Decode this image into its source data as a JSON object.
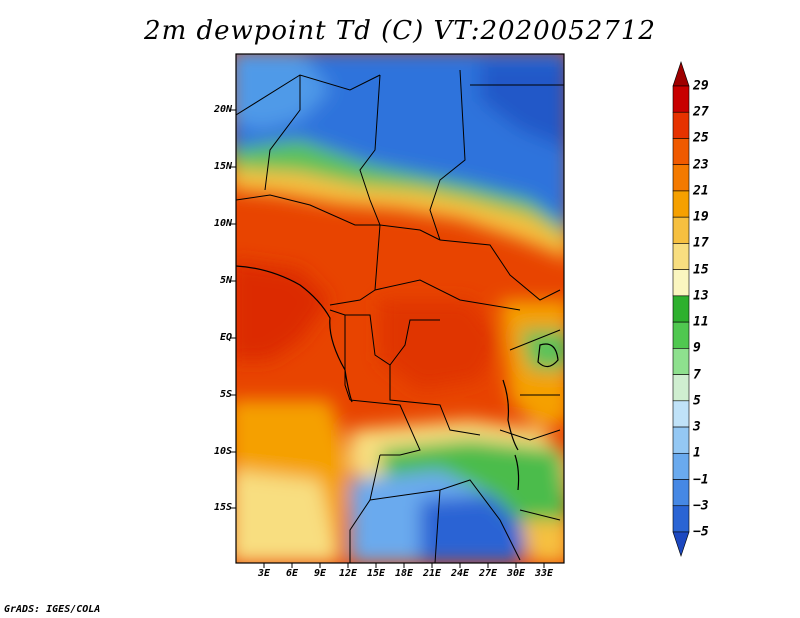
{
  "title": "2m dewpoint Td (C) VT:2020052712",
  "lat_labels": [
    "20N",
    "15N",
    "10N",
    "5N",
    "EQ",
    "5S",
    "10S",
    "15S"
  ],
  "lon_labels": [
    "3E",
    "6E",
    "9E",
    "12E",
    "15E",
    "18E",
    "21E",
    "24E",
    "27E",
    "30E",
    "33E"
  ],
  "colorbar": {
    "labels": [
      "29",
      "27",
      "25",
      "23",
      "21",
      "19",
      "17",
      "15",
      "13",
      "11",
      "9",
      "7",
      "5",
      "3",
      "1",
      "−1",
      "−3",
      "−5"
    ],
    "colors": [
      "#9e0000",
      "#c80000",
      "#e63200",
      "#f05a00",
      "#f47a00",
      "#f5a000",
      "#f6c040",
      "#f8de80",
      "#fbf6c0",
      "#2eb02e",
      "#50c850",
      "#8ee08e",
      "#cfeed0",
      "#c0e2f8",
      "#94c8f4",
      "#6aaaee",
      "#4688e4",
      "#2a64d4",
      "#1c48c0"
    ]
  },
  "credit": "GrADS: IGES/COLA"
}
